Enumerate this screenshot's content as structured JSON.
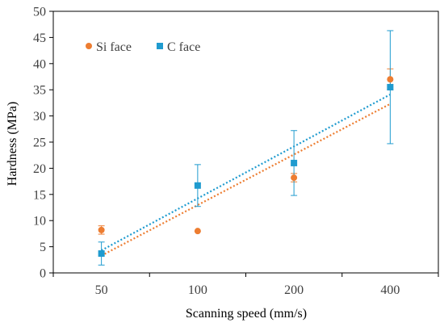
{
  "chart_data": {
    "type": "scatter",
    "title": "",
    "xlabel": "Scanning speed (mm/s)",
    "ylabel": "Hardness (MPa)",
    "categories": [
      "50",
      "100",
      "200",
      "400"
    ],
    "ylim": [
      0,
      50
    ],
    "yticks": [
      0,
      5,
      10,
      15,
      20,
      25,
      30,
      35,
      40,
      45,
      50
    ],
    "grid": false,
    "legend_position": "top-left",
    "series": [
      {
        "name": "Si face",
        "marker": "circle",
        "color": "#ED7D31",
        "values": [
          8.2,
          8.0,
          18.2,
          37.0
        ],
        "error": [
          0.8,
          0,
          0.8,
          2.0
        ],
        "trendline": {
          "type": "linear",
          "style": "dotted",
          "start": 3.3,
          "end": 32.3
        }
      },
      {
        "name": "C face",
        "marker": "square",
        "color": "#1F9BCF",
        "values": [
          3.7,
          16.7,
          21.0,
          35.5
        ],
        "error": [
          2.2,
          4.0,
          6.2,
          10.8
        ],
        "trendline": {
          "type": "linear",
          "style": "dotted",
          "start": 4.3,
          "end": 34.1
        }
      }
    ]
  }
}
